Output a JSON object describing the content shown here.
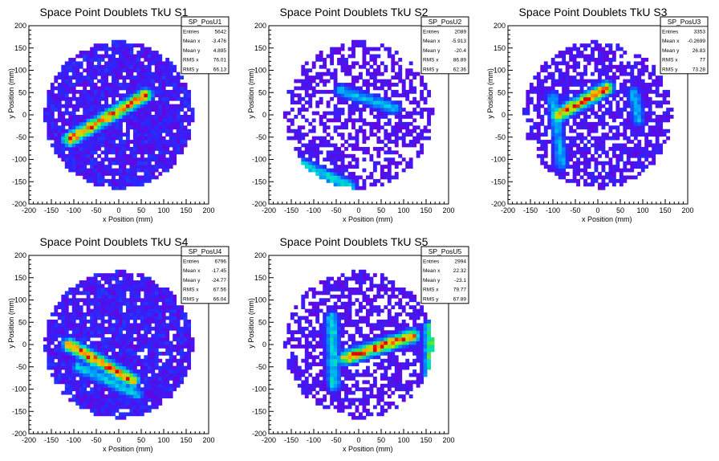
{
  "canvas_bg": "#ffffff",
  "x_axis_label": "x Position (mm)",
  "y_axis_label": "y Position (mm)",
  "ticks": [
    "-200",
    "-150",
    "-100",
    "-50",
    "0",
    "50",
    "100",
    "150",
    "200"
  ],
  "chart_data": [
    {
      "type": "heatmap",
      "title": "Space Point Doublets TkU S1",
      "xlabel": "x Position (mm)",
      "ylabel": "y Position (mm)",
      "xlim": [
        -200,
        200
      ],
      "ylim": [
        -200,
        200
      ],
      "x_ticks": [
        -200,
        -150,
        -100,
        -50,
        0,
        50,
        100,
        150,
        200
      ],
      "y_ticks": [
        -200,
        -150,
        -100,
        -50,
        0,
        50,
        100,
        150,
        200
      ],
      "stats": {
        "name": "SP_PosU1",
        "rows": [
          [
            "Entries",
            "5642"
          ],
          [
            "Mean x",
            "-3.476"
          ],
          [
            "Mean y",
            "4.895"
          ],
          [
            "RMS x",
            "76.01"
          ],
          [
            "RMS y",
            "66.13"
          ]
        ]
      },
      "disk_radius": 165,
      "fill": 0.9,
      "tracks": [
        {
          "x1": -110,
          "y1": -55,
          "x2": 60,
          "y2": 45,
          "peak": 1.0
        }
      ]
    },
    {
      "type": "heatmap",
      "title": "Space Point Doublets TkU S2",
      "xlabel": "x Position (mm)",
      "ylabel": "y Position (mm)",
      "xlim": [
        -200,
        200
      ],
      "ylim": [
        -200,
        200
      ],
      "x_ticks": [
        -200,
        -150,
        -100,
        -50,
        0,
        50,
        100,
        150,
        200
      ],
      "y_ticks": [
        -200,
        -150,
        -100,
        -50,
        0,
        50,
        100,
        150,
        200
      ],
      "stats": {
        "name": "SP_PosU2",
        "rows": [
          [
            "Entries",
            "2089"
          ],
          [
            "Mean x",
            "-5.913"
          ],
          [
            "Mean y",
            "-20.4"
          ],
          [
            "RMS x",
            "86.89"
          ],
          [
            "RMS y",
            "62.36"
          ]
        ]
      },
      "disk_radius": 165,
      "fill": 0.55,
      "tracks": [
        {
          "x1": -130,
          "y1": -110,
          "x2": -20,
          "y2": -160,
          "peak": 0.55
        },
        {
          "x1": -40,
          "y1": 55,
          "x2": 80,
          "y2": 15,
          "peak": 0.45
        }
      ]
    },
    {
      "type": "heatmap",
      "title": "Space Point Doublets TkU S3",
      "xlabel": "x Position (mm)",
      "ylabel": "y Position (mm)",
      "xlim": [
        -200,
        200
      ],
      "ylim": [
        -200,
        200
      ],
      "x_ticks": [
        -200,
        -150,
        -100,
        -50,
        0,
        50,
        100,
        150,
        200
      ],
      "y_ticks": [
        -200,
        -150,
        -100,
        -50,
        0,
        50,
        100,
        150,
        200
      ],
      "stats": {
        "name": "SP_PosU3",
        "rows": [
          [
            "Entries",
            "3353"
          ],
          [
            "Mean x",
            "-0.2699"
          ],
          [
            "Mean y",
            "26.83"
          ],
          [
            "RMS x",
            "77"
          ],
          [
            "RMS y",
            "73.28"
          ]
        ]
      },
      "disk_radius": 165,
      "fill": 0.65,
      "tracks": [
        {
          "x1": -90,
          "y1": 0,
          "x2": 20,
          "y2": 60,
          "peak": 1.0
        },
        {
          "x1": -100,
          "y1": 40,
          "x2": -80,
          "y2": -110,
          "peak": 0.45
        },
        {
          "x1": 80,
          "y1": 50,
          "x2": 90,
          "y2": -10,
          "peak": 0.45
        }
      ]
    },
    {
      "type": "heatmap",
      "title": "Space Point Doublets TkU S4",
      "xlabel": "x Position (mm)",
      "ylabel": "y Position (mm)",
      "xlim": [
        -200,
        200
      ],
      "ylim": [
        -200,
        200
      ],
      "x_ticks": [
        -200,
        -150,
        -100,
        -50,
        0,
        50,
        100,
        150,
        200
      ],
      "y_ticks": [
        -200,
        -150,
        -100,
        -50,
        0,
        50,
        100,
        150,
        200
      ],
      "stats": {
        "name": "SP_PosU4",
        "rows": [
          [
            "Entries",
            "6796"
          ],
          [
            "Mean x",
            "-17.45"
          ],
          [
            "Mean y",
            "-24.77"
          ],
          [
            "RMS x",
            "67.56"
          ],
          [
            "RMS y",
            "66.04"
          ]
        ]
      },
      "disk_radius": 165,
      "fill": 0.9,
      "tracks": [
        {
          "x1": -110,
          "y1": 0,
          "x2": 30,
          "y2": -80,
          "peak": 1.0
        },
        {
          "x1": -90,
          "y1": -50,
          "x2": 40,
          "y2": -110,
          "peak": 0.5
        }
      ]
    },
    {
      "type": "heatmap",
      "title": "Space Point Doublets TkU S5",
      "xlabel": "x Position (mm)",
      "ylabel": "y Position (mm)",
      "xlim": [
        -200,
        200
      ],
      "ylim": [
        -200,
        200
      ],
      "x_ticks": [
        -200,
        -150,
        -100,
        -50,
        0,
        50,
        100,
        150,
        200
      ],
      "y_ticks": [
        -200,
        -150,
        -100,
        -50,
        0,
        50,
        100,
        150,
        200
      ],
      "stats": {
        "name": "SP_PosU5",
        "rows": [
          [
            "Entries",
            "2994"
          ],
          [
            "Mean x",
            "22.32"
          ],
          [
            "Mean y",
            "-23.1"
          ],
          [
            "RMS x",
            "79.77"
          ],
          [
            "RMS y",
            "67.89"
          ]
        ]
      },
      "disk_radius": 165,
      "fill": 0.6,
      "tracks": [
        {
          "x1": -30,
          "y1": -30,
          "x2": 120,
          "y2": 20,
          "peak": 1.0
        },
        {
          "x1": -60,
          "y1": 60,
          "x2": -55,
          "y2": -90,
          "peak": 0.55
        },
        {
          "x1": 160,
          "y1": 40,
          "x2": 160,
          "y2": -80,
          "peak": 0.7
        }
      ]
    }
  ]
}
